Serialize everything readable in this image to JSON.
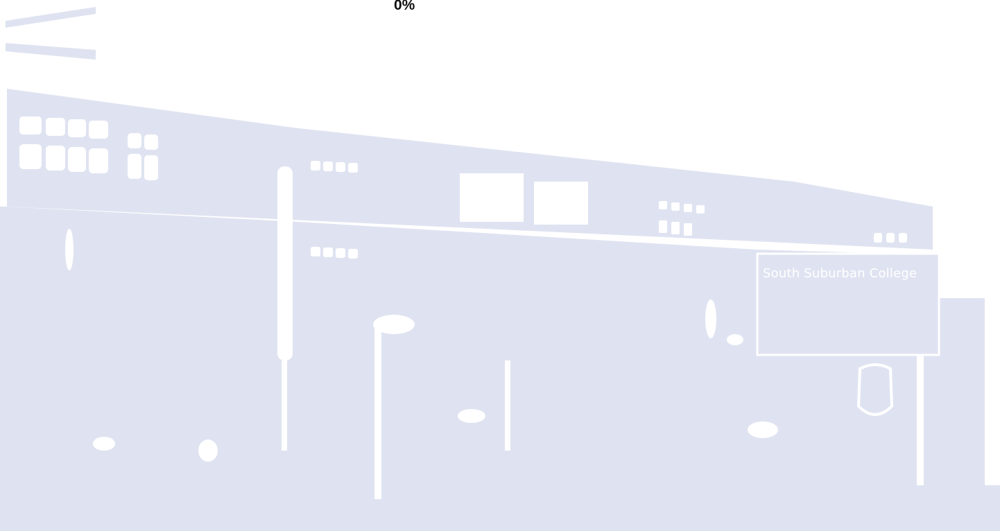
{
  "loading": {
    "progress_text": "0%",
    "progress_value": 0
  },
  "background": {
    "sign_text": "South Suburban College",
    "tint_color": "#dfe3f1"
  }
}
